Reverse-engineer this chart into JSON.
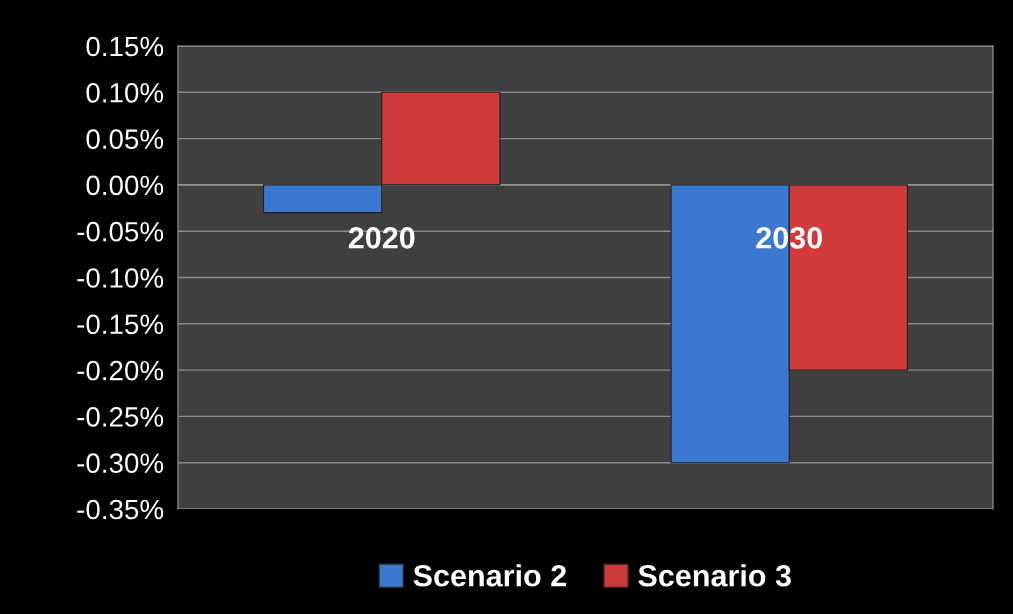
{
  "chart_data": {
    "type": "bar",
    "categories": [
      "2020",
      "2030"
    ],
    "series": [
      {
        "name": "Scenario 2",
        "color": "#3b78d2",
        "values": [
          -0.03,
          -0.3
        ]
      },
      {
        "name": "Scenario 3",
        "color": "#d03a3a",
        "values": [
          0.1,
          -0.2
        ]
      }
    ],
    "ylim": [
      -0.35,
      0.15
    ],
    "yticks": [
      {
        "value": 0.15,
        "label": "0.15%"
      },
      {
        "value": 0.1,
        "label": "0.10%"
      },
      {
        "value": 0.05,
        "label": "0.05%"
      },
      {
        "value": 0,
        "label": "0.00%"
      },
      {
        "value": -0.05,
        "label": "-0.05%"
      },
      {
        "value": -0.1,
        "label": "-0.10%"
      },
      {
        "value": -0.15,
        "label": "-0.15%"
      },
      {
        "value": -0.2,
        "label": "-0.20%"
      },
      {
        "value": -0.25,
        "label": "-0.25%"
      },
      {
        "value": -0.3,
        "label": "-0.30%"
      },
      {
        "value": -0.35,
        "label": "-0.35%"
      }
    ],
    "grid": "y",
    "legend": "bottom"
  }
}
